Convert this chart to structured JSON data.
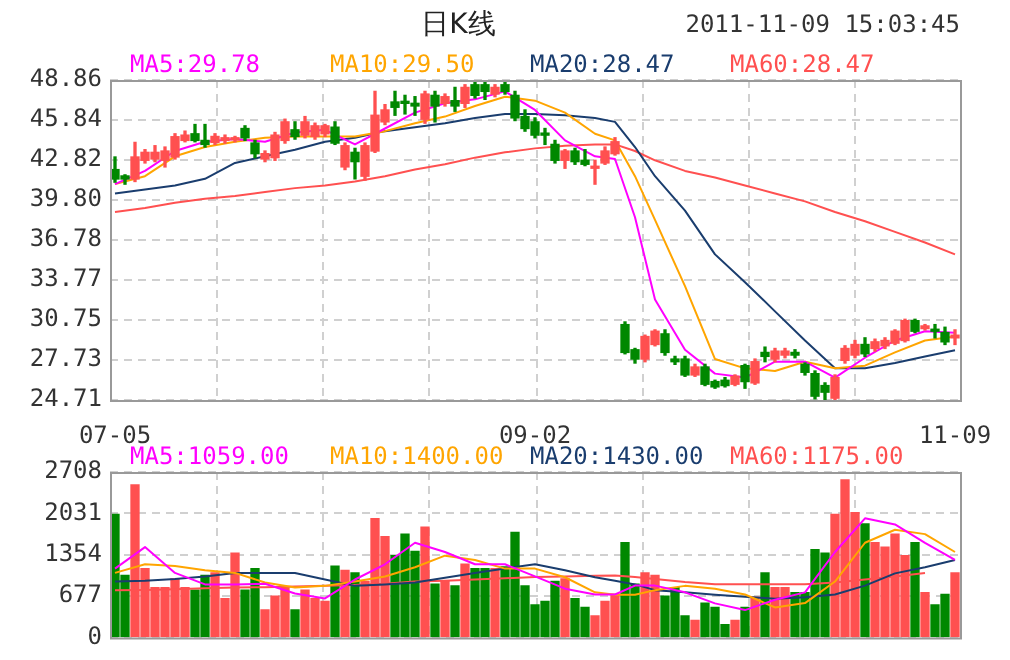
{
  "chart_data": [
    {
      "type": "candlestick",
      "title": "日K线",
      "annotations": [
        "2011-11-09 15:03:45"
      ],
      "categories": [
        "07-05",
        null,
        null,
        null,
        null,
        null,
        null,
        null,
        null,
        null,
        null,
        null,
        null,
        null,
        null,
        null,
        null,
        null,
        null,
        null,
        null,
        null,
        null,
        null,
        null,
        null,
        null,
        null,
        null,
        null,
        null,
        null,
        null,
        null,
        null,
        null,
        null,
        null,
        null,
        null,
        null,
        null,
        "09-02",
        null,
        null,
        null,
        null,
        null,
        null,
        null,
        null,
        null,
        null,
        null,
        null,
        null,
        null,
        null,
        null,
        null,
        null,
        null,
        null,
        null,
        null,
        null,
        null,
        null,
        null,
        null,
        null,
        null,
        null,
        null,
        null,
        null,
        null,
        null,
        null,
        null,
        null,
        null,
        null,
        null,
        "11-09"
      ],
      "ohlc": [
        [
          42.1,
          43.05,
          41.15,
          41.39
        ],
        [
          41.62,
          41.7,
          41.0,
          41.39
        ],
        [
          41.39,
          44.15,
          41.2,
          43.05
        ],
        [
          42.8,
          43.6,
          42.6,
          43.4
        ],
        [
          42.9,
          43.9,
          42.7,
          43.4
        ],
        [
          42.8,
          43.8,
          42.3,
          43.5
        ],
        [
          43.05,
          44.8,
          42.9,
          44.58
        ],
        [
          44.3,
          45.0,
          44.2,
          44.7
        ],
        [
          44.8,
          45.5,
          44.2,
          44.3
        ],
        [
          44.3,
          45.5,
          43.8,
          44.0
        ],
        [
          44.15,
          44.8,
          44.0,
          44.6
        ],
        [
          44.3,
          44.7,
          44.1,
          44.5
        ],
        [
          44.35,
          44.6,
          44.2,
          44.5
        ],
        [
          45.2,
          45.4,
          44.3,
          44.5
        ],
        [
          44.1,
          44.3,
          43.0,
          43.3
        ],
        [
          42.9,
          43.5,
          42.7,
          43.3
        ],
        [
          43.0,
          44.9,
          42.8,
          44.7
        ],
        [
          44.3,
          45.9,
          44.1,
          45.7
        ],
        [
          45.1,
          45.7,
          44.4,
          44.6
        ],
        [
          44.7,
          46.1,
          44.5,
          45.7
        ],
        [
          44.6,
          45.6,
          44.4,
          45.4
        ],
        [
          44.8,
          45.5,
          44.6,
          45.4
        ],
        [
          45.3,
          45.7,
          44.0,
          44.1
        ],
        [
          42.3,
          44.1,
          42.1,
          43.9
        ],
        [
          43.4,
          43.7,
          41.4,
          42.7
        ],
        [
          41.6,
          44.1,
          41.3,
          43.9
        ],
        [
          43.5,
          48.0,
          43.4,
          46.2
        ],
        [
          45.7,
          47.0,
          45.5,
          46.6
        ],
        [
          47.2,
          48.0,
          46.2,
          46.8
        ],
        [
          47.2,
          47.7,
          46.3,
          47.1
        ],
        [
          47.1,
          47.6,
          46.2,
          46.9
        ],
        [
          45.9,
          48.0,
          45.6,
          47.8
        ],
        [
          47.7,
          48.0,
          45.7,
          46.9
        ],
        [
          47.1,
          47.8,
          46.9,
          47.6
        ],
        [
          47.3,
          48.3,
          46.5,
          46.9
        ],
        [
          47.1,
          48.5,
          46.8,
          48.3
        ],
        [
          48.5,
          48.8,
          47.5,
          47.7
        ],
        [
          48.5,
          48.7,
          47.4,
          48.0
        ],
        [
          47.8,
          48.5,
          47.6,
          48.3
        ],
        [
          48.5,
          48.7,
          47.8,
          48.0
        ],
        [
          47.7,
          48.0,
          45.8,
          46.0
        ],
        [
          46.1,
          46.6,
          45.0,
          45.2
        ],
        [
          45.7,
          46.0,
          44.5,
          44.7
        ],
        [
          44.8,
          45.2,
          44.0,
          44.7
        ],
        [
          44.0,
          44.3,
          42.6,
          42.8
        ],
        [
          42.8,
          43.6,
          42.2,
          43.5
        ],
        [
          43.5,
          43.7,
          42.5,
          42.7
        ],
        [
          42.8,
          43.6,
          42.4,
          42.5
        ],
        [
          42.2,
          42.8,
          41.0,
          42.3
        ],
        [
          42.6,
          43.8,
          42.5,
          43.5
        ],
        [
          43.3,
          44.5,
          43.2,
          44.2
        ],
        [
          30.4,
          30.6,
          28.2,
          28.3
        ],
        [
          28.5,
          28.6,
          27.5,
          27.8
        ],
        [
          27.8,
          29.6,
          27.6,
          29.5
        ],
        [
          28.9,
          30.0,
          28.8,
          29.9
        ],
        [
          29.7,
          30.0,
          28.1,
          28.3
        ],
        [
          27.8,
          28.0,
          27.4,
          27.6
        ],
        [
          27.8,
          28.0,
          26.5,
          26.6
        ],
        [
          26.6,
          27.4,
          26.5,
          27.2
        ],
        [
          27.2,
          27.4,
          25.8,
          25.9
        ],
        [
          26.1,
          26.2,
          25.6,
          25.7
        ],
        [
          26.2,
          26.4,
          25.7,
          25.8
        ],
        [
          25.9,
          26.6,
          25.8,
          26.5
        ],
        [
          27.3,
          27.4,
          25.6,
          26.1
        ],
        [
          26.0,
          27.8,
          25.9,
          27.6
        ],
        [
          28.3,
          28.7,
          27.6,
          28.0
        ],
        [
          27.8,
          28.6,
          27.6,
          28.4
        ],
        [
          28.1,
          28.6,
          27.9,
          28.4
        ],
        [
          28.3,
          28.5,
          27.9,
          28.1
        ],
        [
          27.4,
          27.5,
          26.6,
          26.8
        ],
        [
          26.7,
          26.9,
          24.8,
          25.0
        ],
        [
          25.8,
          26.0,
          24.71,
          25.3
        ],
        [
          24.85,
          26.6,
          24.71,
          26.4
        ],
        [
          27.7,
          28.8,
          27.5,
          28.6
        ],
        [
          28.1,
          29.2,
          27.9,
          28.9
        ],
        [
          28.9,
          29.4,
          28.0,
          28.2
        ],
        [
          28.6,
          29.3,
          28.4,
          29.1
        ],
        [
          28.8,
          29.4,
          28.6,
          29.2
        ],
        [
          29.0,
          30.0,
          28.9,
          29.9
        ],
        [
          29.2,
          30.8,
          29.1,
          30.7
        ],
        [
          30.7,
          30.8,
          29.8,
          29.9
        ],
        [
          30.1,
          30.4,
          30.0,
          30.3
        ],
        [
          30.0,
          30.4,
          29.4,
          29.9
        ],
        [
          29.8,
          30.2,
          28.9,
          29.1
        ],
        [
          29.4,
          30.0,
          28.9,
          29.6
        ]
      ],
      "colors": [
        "#008800",
        "#008800",
        "#ff5050",
        "#ff5050",
        "#ff5050",
        "#ff5050",
        "#ff5050",
        "#ff5050",
        "#008800",
        "#008800",
        "#ff5050",
        "#ff5050",
        "#ff5050",
        "#008800",
        "#008800",
        "#ff5050",
        "#ff5050",
        "#ff5050",
        "#008800",
        "#ff5050",
        "#ff5050",
        "#ff5050",
        "#008800",
        "#ff5050",
        "#008800",
        "#ff5050",
        "#ff5050",
        "#ff5050",
        "#008800",
        "#008800",
        "#008800",
        "#ff5050",
        "#008800",
        "#ff5050",
        "#008800",
        "#ff5050",
        "#008800",
        "#008800",
        "#ff5050",
        "#008800",
        "#008800",
        "#008800",
        "#008800",
        "#008800",
        "#008800",
        "#ff5050",
        "#008800",
        "#008800",
        "#ff5050",
        "#ff5050",
        "#ff5050",
        "#008800",
        "#008800",
        "#ff5050",
        "#ff5050",
        "#008800",
        "#008800",
        "#008800",
        "#ff5050",
        "#008800",
        "#008800",
        "#008800",
        "#ff5050",
        "#008800",
        "#ff5050",
        "#008800",
        "#ff5050",
        "#ff5050",
        "#008800",
        "#008800",
        "#008800",
        "#008800",
        "#ff5050",
        "#ff5050",
        "#ff5050",
        "#008800",
        "#ff5050",
        "#ff5050",
        "#ff5050",
        "#ff5050",
        "#008800",
        "#ff5050",
        "#008800",
        "#008800",
        "#ff5050"
      ],
      "series": [
        {
          "name": "MA5:29.78",
          "type": "line",
          "color": "#ff00ff",
          "values": [
            41.0,
            null,
            null,
            42.0,
            null,
            null,
            43.5,
            null,
            null,
            44.2,
            null,
            null,
            44.4,
            null,
            null,
            44.2,
            null,
            null,
            44.9,
            null,
            null,
            45.1,
            null,
            null,
            44.0,
            null,
            null,
            45.2,
            null,
            null,
            46.4,
            null,
            null,
            47.1,
            null,
            null,
            47.4,
            null,
            null,
            48.0,
            null,
            null,
            46.6,
            null,
            null,
            44.3,
            null,
            null,
            43.1,
            null,
            42.9,
            null,
            38.5,
            null,
            32.3,
            null,
            null,
            28.5,
            null,
            null,
            26.7,
            null,
            null,
            26.4,
            null,
            null,
            27.6,
            null,
            null,
            27.6,
            null,
            null,
            26.4,
            null,
            null,
            27.9,
            null,
            null,
            29.2,
            null,
            null,
            29.9,
            null,
            null,
            29.78
          ]
        },
        {
          "name": "MA10:29.50",
          "type": "line",
          "color": "#ffa500",
          "values": [
            41.0,
            null,
            null,
            41.6,
            null,
            null,
            43.1,
            null,
            null,
            43.8,
            null,
            null,
            44.2,
            null,
            null,
            44.5,
            null,
            null,
            44.6,
            null,
            null,
            44.6,
            null,
            null,
            44.6,
            null,
            null,
            45.0,
            null,
            null,
            45.6,
            null,
            null,
            46.1,
            null,
            null,
            46.9,
            null,
            null,
            47.6,
            null,
            null,
            47.3,
            null,
            null,
            46.4,
            null,
            null,
            44.8,
            null,
            44.3,
            null,
            41.6,
            null,
            38.3,
            null,
            null,
            33.3,
            null,
            null,
            27.8,
            null,
            null,
            27.1,
            null,
            null,
            26.9,
            null,
            null,
            27.6,
            null,
            null,
            27.1,
            null,
            null,
            27.3,
            null,
            null,
            28.3,
            null,
            null,
            29.2,
            null,
            null,
            29.5
          ]
        },
        {
          "name": "MA20:28.47",
          "type": "line",
          "color": "#1a3d6e",
          "values": [
            40.3,
            null,
            null,
            40.6,
            null,
            null,
            40.9,
            null,
            null,
            41.4,
            null,
            null,
            42.6,
            null,
            null,
            43.1,
            null,
            null,
            43.6,
            null,
            null,
            44.2,
            null,
            null,
            44.5,
            null,
            null,
            45.0,
            null,
            null,
            45.3,
            null,
            null,
            45.6,
            null,
            null,
            46.0,
            null,
            null,
            46.3,
            null,
            null,
            46.3,
            null,
            null,
            46.2,
            null,
            null,
            46.0,
            null,
            45.7,
            null,
            43.8,
            null,
            41.6,
            null,
            null,
            39.0,
            null,
            null,
            35.7,
            null,
            null,
            33.6,
            null,
            null,
            31.4,
            null,
            null,
            29.2,
            null,
            null,
            27.1,
            null,
            null,
            27.1,
            null,
            null,
            27.5,
            null,
            null,
            28.0,
            null,
            null,
            28.47
          ]
        },
        {
          "name": "MA60:28.47",
          "type": "line",
          "color": "#ff5050",
          "values": [
            38.9,
            null,
            null,
            39.2,
            null,
            null,
            39.6,
            null,
            null,
            39.9,
            null,
            null,
            40.1,
            null,
            null,
            40.4,
            null,
            null,
            40.7,
            null,
            null,
            40.9,
            null,
            null,
            41.2,
            null,
            null,
            41.6,
            null,
            null,
            42.1,
            null,
            null,
            42.5,
            null,
            null,
            43.0,
            null,
            null,
            43.4,
            null,
            null,
            43.7,
            null,
            null,
            43.9,
            null,
            null,
            44.0,
            null,
            44.0,
            null,
            43.5,
            null,
            42.8,
            null,
            null,
            42.0,
            null,
            null,
            41.5,
            null,
            null,
            40.9,
            null,
            null,
            40.3,
            null,
            null,
            39.7,
            null,
            null,
            38.9,
            null,
            null,
            38.2,
            null,
            null,
            37.4,
            null,
            null,
            36.6,
            null,
            null,
            35.7
          ]
        }
      ],
      "ylim": [
        24.71,
        48.86
      ],
      "yticks": [
        24.71,
        27.73,
        30.75,
        33.77,
        36.78,
        {
          "value": 39.8,
          "label": "39.80"
        },
        42.82,
        45.84,
        48.86
      ],
      "grid": true,
      "legend": "top",
      "marker": "none"
    },
    {
      "type": "bar",
      "categories": [
        null,
        null,
        null,
        null,
        null,
        null,
        null,
        null,
        null,
        null,
        null,
        null,
        null,
        null,
        null,
        null,
        null,
        null,
        null,
        null,
        null,
        null,
        null,
        null,
        null,
        null,
        null,
        null,
        null,
        null,
        null,
        null,
        null,
        null,
        null,
        null,
        null,
        null,
        null,
        null,
        null,
        null,
        null,
        null,
        null,
        null,
        null,
        null,
        null,
        null,
        null,
        null,
        null,
        null,
        null,
        null,
        null,
        null,
        null,
        null,
        null,
        null,
        null,
        null,
        null,
        null,
        null,
        null,
        null,
        null,
        null,
        null,
        null,
        null,
        null,
        null,
        null,
        null,
        null,
        null,
        null,
        null,
        null,
        null,
        null
      ],
      "values": [
        2016,
        1015,
        2496,
        1128,
        818,
        818,
        959,
        818,
        776,
        1015,
        1058,
        635,
        1382,
        776,
        1128,
        451,
        677,
        818,
        451,
        776,
        635,
        592,
        1170,
        1100,
        1058,
        917,
        1946,
        1650,
        1340,
        1692,
        1410,
        1805,
        874,
        917,
        846,
        1199,
        1128,
        1128,
        1128,
        1156,
        1720,
        846,
        536,
        592,
        917,
        959,
        635,
        494,
        353,
        592,
        705,
        1551,
        874,
        1058,
        1015,
        677,
        818,
        353,
        282,
        564,
        494,
        212,
        282,
        494,
        663,
        1058,
        818,
        818,
        733,
        733,
        1438,
        1382,
        2016,
        2580,
        2045,
        1861,
        1551,
        1480,
        1692,
        1340,
        1551,
        733,
        536,
        705,
        1058
      ],
      "colors": [
        "#008800",
        "#008800",
        "#ff5050",
        "#ff5050",
        "#ff5050",
        "#ff5050",
        "#ff5050",
        "#ff5050",
        "#008800",
        "#008800",
        "#ff5050",
        "#ff5050",
        "#ff5050",
        "#008800",
        "#008800",
        "#ff5050",
        "#ff5050",
        "#ff5050",
        "#008800",
        "#ff5050",
        "#ff5050",
        "#ff5050",
        "#008800",
        "#ff5050",
        "#008800",
        "#ff5050",
        "#ff5050",
        "#ff5050",
        "#008800",
        "#008800",
        "#008800",
        "#ff5050",
        "#008800",
        "#ff5050",
        "#008800",
        "#ff5050",
        "#008800",
        "#008800",
        "#ff5050",
        "#008800",
        "#008800",
        "#008800",
        "#008800",
        "#008800",
        "#008800",
        "#ff5050",
        "#008800",
        "#008800",
        "#ff5050",
        "#ff5050",
        "#ff5050",
        "#008800",
        "#008800",
        "#ff5050",
        "#ff5050",
        "#008800",
        "#008800",
        "#008800",
        "#ff5050",
        "#008800",
        "#008800",
        "#008800",
        "#ff5050",
        "#008800",
        "#ff5050",
        "#008800",
        "#ff5050",
        "#ff5050",
        "#008800",
        "#008800",
        "#008800",
        "#008800",
        "#ff5050",
        "#ff5050",
        "#ff5050",
        "#008800",
        "#ff5050",
        "#ff5050",
        "#ff5050",
        "#ff5050",
        "#008800",
        "#ff5050",
        "#008800",
        "#008800",
        "#ff5050"
      ],
      "series": [
        {
          "name": "MA5:1059.00",
          "type": "line",
          "color": "#ff00ff",
          "values": [
            1128,
            null,
            null,
            1480,
            null,
            null,
            1058,
            null,
            null,
            870,
            null,
            null,
            870,
            null,
            null,
            880,
            null,
            null,
            720,
            null,
            null,
            640,
            null,
            null,
            950,
            null,
            null,
            1199,
            null,
            null,
            1551,
            null,
            null,
            1400,
            null,
            null,
            1199,
            null,
            null,
            1199,
            null,
            null,
            1000,
            null,
            null,
            800,
            null,
            null,
            705,
            null,
            705,
            null,
            850,
            null,
            850,
            null,
            null,
            740,
            null,
            null,
            560,
            null,
            null,
            450,
            null,
            null,
            620,
            null,
            null,
            740,
            null,
            null,
            1400,
            null,
            null,
            1950,
            null,
            null,
            1850,
            null,
            null,
            1550,
            null,
            null,
            1270
          ]
        },
        {
          "name": "MA10:1400.00",
          "type": "line",
          "color": "#ffa500",
          "values": [
            1058,
            null,
            null,
            1199,
            null,
            null,
            1170,
            null,
            null,
            1100,
            null,
            null,
            1058,
            null,
            null,
            900,
            null,
            null,
            818,
            null,
            null,
            846,
            null,
            null,
            917,
            null,
            null,
            1000,
            null,
            null,
            1150,
            null,
            null,
            1340,
            null,
            null,
            1269,
            null,
            null,
            1128,
            null,
            null,
            1128,
            null,
            null,
            987,
            null,
            null,
            740,
            null,
            700,
            null,
            700,
            null,
            776,
            null,
            null,
            846,
            null,
            null,
            800,
            null,
            null,
            705,
            null,
            null,
            494,
            null,
            null,
            564,
            null,
            null,
            917,
            null,
            null,
            1551,
            null,
            null,
            1763,
            null,
            null,
            1692,
            null,
            null,
            1400
          ]
        },
        {
          "name": "MA20:1430.00",
          "type": "line",
          "color": "#1a3d6e",
          "values": [
            917,
            null,
            null,
            930,
            null,
            null,
            959,
            null,
            null,
            1000,
            null,
            null,
            1058,
            null,
            null,
            1058,
            null,
            null,
            1058,
            null,
            null,
            950,
            null,
            null,
            846,
            null,
            null,
            870,
            null,
            null,
            900,
            null,
            null,
            980,
            null,
            null,
            1058,
            null,
            null,
            1130,
            null,
            null,
            1199,
            null,
            null,
            1100,
            null,
            null,
            987,
            null,
            930,
            null,
            870,
            null,
            776,
            null,
            null,
            740,
            null,
            null,
            700,
            null,
            null,
            670,
            null,
            null,
            635,
            null,
            null,
            660,
            null,
            null,
            705,
            null,
            null,
            850,
            null,
            null,
            1050,
            null,
            null,
            1150,
            null,
            null,
            1269
          ]
        },
        {
          "name": "MA60:1175.00",
          "type": "line",
          "color": "#ff5050",
          "values": [
            776,
            null,
            null,
            780,
            null,
            null,
            790,
            null,
            null,
            805,
            null,
            null,
            818,
            null,
            null,
            825,
            null,
            null,
            835,
            null,
            null,
            846,
            null,
            null,
            860,
            null,
            null,
            880,
            null,
            null,
            917,
            null,
            null,
            930,
            null,
            null,
            950,
            null,
            null,
            970,
            null,
            null,
            990,
            null,
            null,
            1000,
            null,
            null,
            1010,
            null,
            1015,
            null,
            990,
            null,
            960,
            null,
            null,
            910,
            null,
            null,
            874,
            null,
            null,
            874,
            null,
            null,
            874,
            null,
            null,
            874,
            null,
            null,
            900,
            null,
            null,
            950,
            null,
            null,
            1000,
            null,
            null,
            1058,
            null,
            null,
            null
          ]
        }
      ],
      "ylim": [
        0,
        2708
      ],
      "yticks": [
        0,
        677,
        1354,
        2031,
        2708
      ],
      "grid": true,
      "legend": "top",
      "marker": "none",
      "tick_labels": "y"
    }
  ]
}
